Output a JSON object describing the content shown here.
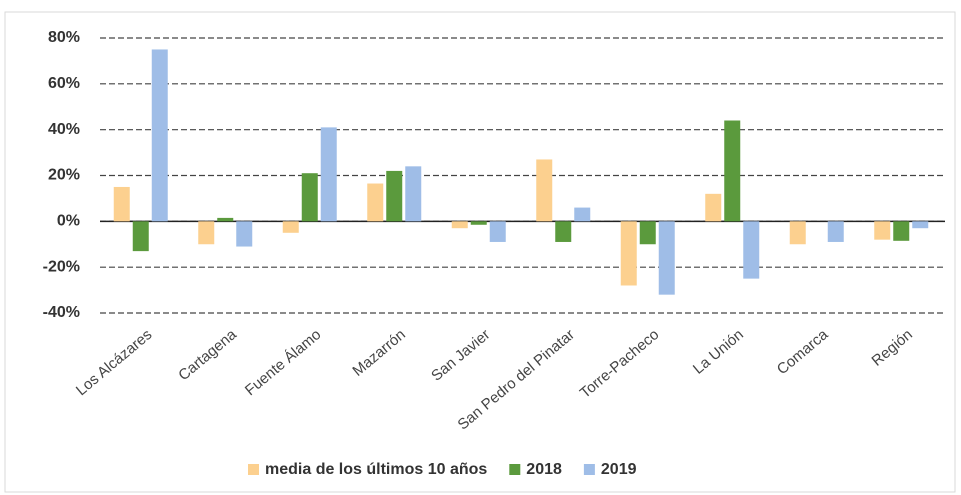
{
  "chart_data": {
    "type": "bar",
    "categories": [
      "Los Alcázares",
      "Cartagena",
      "Fuente Álamo",
      "Mazarrón",
      "San Javier",
      "San Pedro del Pinatar",
      "Torre-Pacheco",
      "La Unión",
      "Comarca",
      "Región"
    ],
    "series": [
      {
        "name": "media de los últimos 10 años",
        "color": "#fcd08f",
        "values": [
          15,
          -10,
          -5,
          16.5,
          -3,
          27,
          -28,
          12,
          -10,
          -8
        ]
      },
      {
        "name": "2018",
        "color": "#5b9a3d",
        "values": [
          -13,
          1.5,
          21,
          22,
          -1.5,
          -9,
          -10,
          44,
          0,
          -8.5
        ]
      },
      {
        "name": "2019",
        "color": "#9fbde7",
        "values": [
          75,
          -11,
          41,
          24,
          -9,
          6,
          -32,
          -25,
          -9,
          -3
        ]
      }
    ],
    "ylim": [
      -40,
      80
    ],
    "yticks": [
      {
        "value": -40,
        "label": "-40%"
      },
      {
        "value": -20,
        "label": "-20%"
      },
      {
        "value": 0,
        "label": "0%"
      },
      {
        "value": 20,
        "label": "20%"
      },
      {
        "value": 40,
        "label": "40%"
      },
      {
        "value": 60,
        "label": "60%"
      },
      {
        "value": 80,
        "label": "80%"
      }
    ],
    "grid": true,
    "legend": "bottom"
  }
}
